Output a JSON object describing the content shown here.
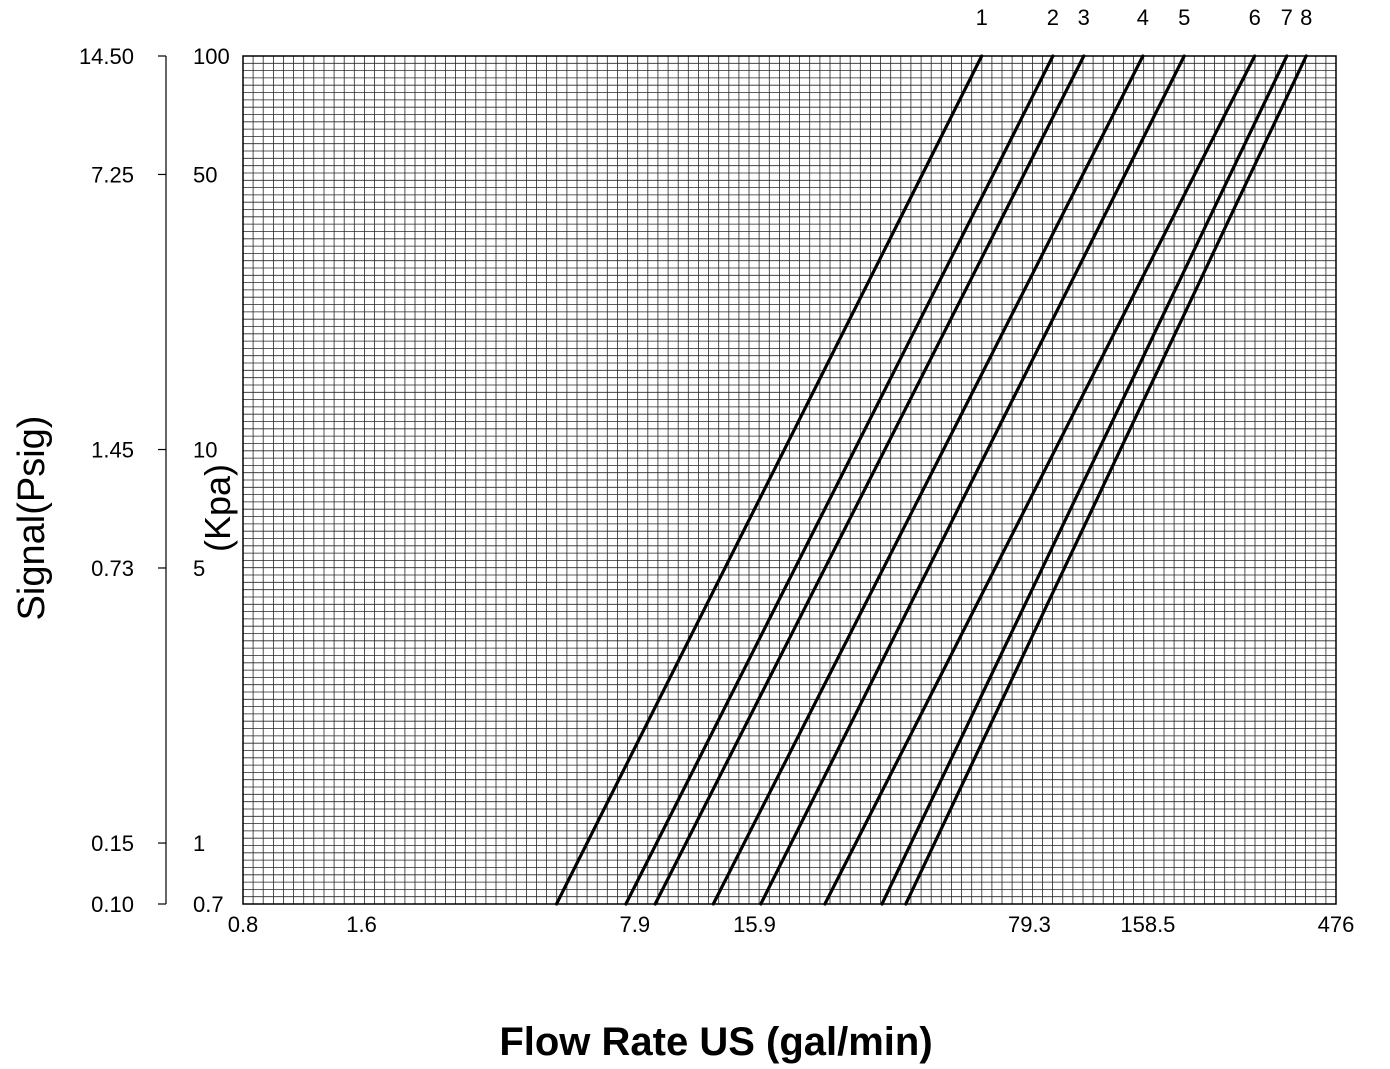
{
  "chart_data": {
    "type": "line",
    "x_scale": "log",
    "y_scale": "log",
    "xlim": [
      0.8,
      476
    ],
    "ylim": [
      0.7,
      100
    ],
    "grid": true,
    "xlabel": "Flow Rate US (gal/min)",
    "ylabel_left": "Signal(Psig)",
    "ylabel_right": "(Kpa)",
    "x_ticks": [
      {
        "value": 0.8,
        "label": "0.8"
      },
      {
        "value": 1.6,
        "label": "1.6"
      },
      {
        "value": 7.9,
        "label": "7.9"
      },
      {
        "value": 15.9,
        "label": "15.9"
      },
      {
        "value": 79.3,
        "label": "79.3"
      },
      {
        "value": 158.5,
        "label": "158.5"
      },
      {
        "value": 476,
        "label": "476"
      }
    ],
    "y_ticks_kpa": [
      {
        "value": 0.7,
        "label": "0.7"
      },
      {
        "value": 1,
        "label": "1"
      },
      {
        "value": 5,
        "label": "5"
      },
      {
        "value": 10,
        "label": "10"
      },
      {
        "value": 50,
        "label": "50"
      },
      {
        "value": 100,
        "label": "100"
      }
    ],
    "y_ticks_psig": [
      {
        "value": 0.7,
        "label": "0.10"
      },
      {
        "value": 1,
        "label": "0.15"
      },
      {
        "value": 5,
        "label": "0.73"
      },
      {
        "value": 10,
        "label": "1.45"
      },
      {
        "value": 50,
        "label": "7.25"
      },
      {
        "value": 100,
        "label": "14.50"
      }
    ],
    "series": [
      {
        "name": "1",
        "x": [
          5.0,
          60.0
        ],
        "y": [
          0.7,
          100
        ]
      },
      {
        "name": "2",
        "x": [
          7.5,
          91.0
        ],
        "y": [
          0.7,
          100
        ]
      },
      {
        "name": "3",
        "x": [
          8.9,
          109.0
        ],
        "y": [
          0.7,
          100
        ]
      },
      {
        "name": "4",
        "x": [
          12.5,
          154.0
        ],
        "y": [
          0.7,
          100
        ]
      },
      {
        "name": "5",
        "x": [
          16.5,
          196.0
        ],
        "y": [
          0.7,
          100
        ]
      },
      {
        "name": "6",
        "x": [
          24.0,
          296.0
        ],
        "y": [
          0.7,
          100
        ]
      },
      {
        "name": "7",
        "x": [
          33.5,
          357.0
        ],
        "y": [
          0.7,
          100
        ]
      },
      {
        "name": "8",
        "x": [
          38.5,
          400.0
        ],
        "y": [
          0.7,
          100
        ]
      }
    ]
  }
}
